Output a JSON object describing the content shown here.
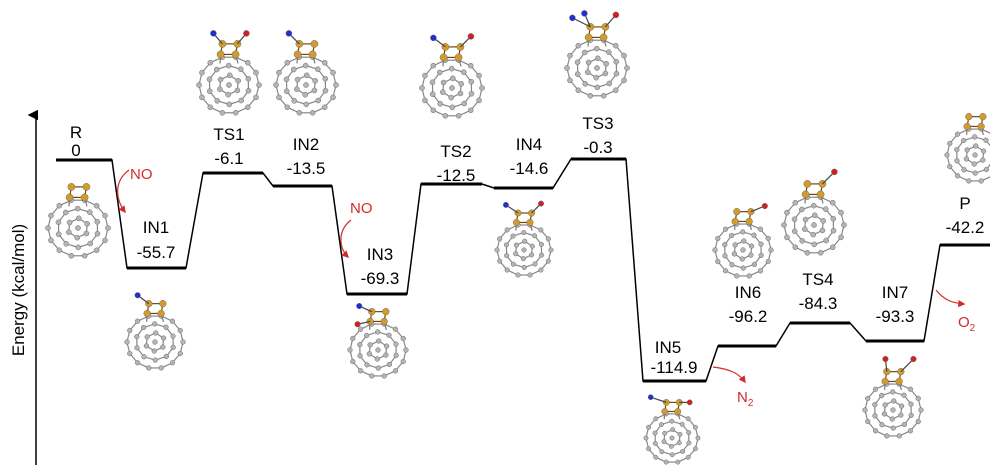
{
  "diagram": {
    "y_axis_label": "Energy (kcal/mol)",
    "colors": {
      "line": "#000000",
      "reagent": "#d42a2a",
      "carbon": "#b4b4b4",
      "boron": "#d49b2b",
      "nitrogen": "#1f2fd4",
      "oxygen": "#d41f1f"
    },
    "states": [
      {
        "name": "R",
        "energy": "0"
      },
      {
        "name": "IN1",
        "energy": "-55.7"
      },
      {
        "name": "TS1",
        "energy": "-6.1"
      },
      {
        "name": "IN2",
        "energy": "-13.5"
      },
      {
        "name": "IN3",
        "energy": "-69.3"
      },
      {
        "name": "TS2",
        "energy": "-12.5"
      },
      {
        "name": "IN4",
        "energy": "-14.6"
      },
      {
        "name": "TS3",
        "energy": "-0.3"
      },
      {
        "name": "IN5",
        "energy": "-114.9"
      },
      {
        "name": "IN6",
        "energy": "-96.2"
      },
      {
        "name": "TS4",
        "energy": "-84.3"
      },
      {
        "name": "IN7",
        "energy": "-93.3"
      },
      {
        "name": "P",
        "energy": "-42.2"
      }
    ],
    "reagents": {
      "no_1": "NO",
      "no_2": "NO",
      "n2": "N",
      "n2_sub": "2",
      "o2": "O",
      "o2_sub": "2"
    }
  }
}
